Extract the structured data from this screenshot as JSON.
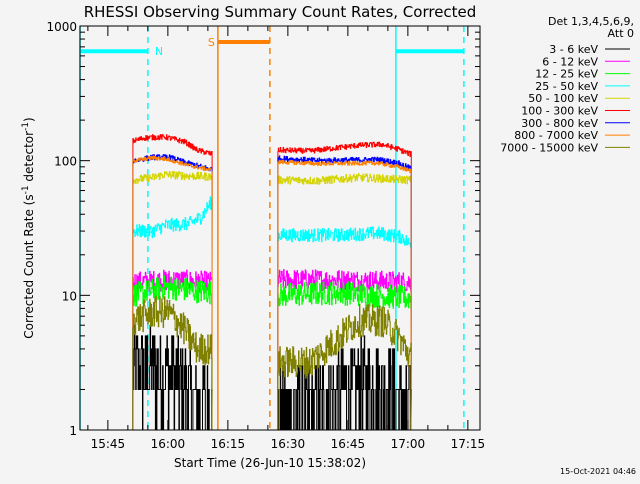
{
  "chart_data": {
    "type": "line",
    "title": "RHESSI Observing Summary Count Rates, Corrected",
    "xlabel": "Start Time (26-Jun-10 15:38:02)",
    "ylabel": "Corrected Count Rate (s",
    "ylabel_sup1": "-1",
    "ylabel_mid": " detector",
    "ylabel_sup2": "-1",
    "ylabel_end": ")",
    "yscale": "log",
    "ylim": [
      1,
      1000
    ],
    "ytick_labels": [
      "1000",
      "100",
      "10",
      "1"
    ],
    "xlim": [
      "15:38:02",
      "17:18:02"
    ],
    "xtick_labels": [
      "15:45",
      "16:00",
      "16:15",
      "16:30",
      "16:45",
      "17:00",
      "17:15"
    ],
    "legend_header": [
      "Det 1,3,4,5,6,9,",
      "Att 0"
    ],
    "legend_position": "right",
    "timestamp": "15-Oct-2021 04:46",
    "windows": [
      [
        "15:51:15",
        "16:11:00"
      ],
      [
        "16:27:30",
        "17:00:45"
      ]
    ],
    "series": [
      {
        "name": "3 - 6 keV",
        "color": "#000000",
        "noise": 0.35,
        "w1": [
          [
            0,
            2.8
          ],
          [
            5,
            2.8
          ],
          [
            10,
            2.5
          ],
          [
            15,
            1.8
          ],
          [
            19.7,
            1.4
          ]
        ],
        "w2": [
          [
            0,
            1.3
          ],
          [
            10,
            1.5
          ],
          [
            18,
            2.0
          ],
          [
            25,
            2.2
          ],
          [
            33,
            1.4
          ]
        ]
      },
      {
        "name": "6 - 12 keV",
        "color": "#ff00ff",
        "noise": 0.08,
        "w1": [
          [
            0,
            12.5
          ],
          [
            10,
            13
          ],
          [
            19.7,
            12.5
          ]
        ],
        "w2": [
          [
            0,
            13
          ],
          [
            15,
            13
          ],
          [
            33,
            12.5
          ]
        ]
      },
      {
        "name": "12 - 25 keV",
        "color": "#00ff00",
        "noise": 0.09,
        "w1": [
          [
            0,
            10
          ],
          [
            8,
            11.5
          ],
          [
            19.7,
            10.5
          ]
        ],
        "w2": [
          [
            0,
            10
          ],
          [
            15,
            10.5
          ],
          [
            33,
            9.5
          ]
        ]
      },
      {
        "name": "25 - 50 keV",
        "color": "#00ffff",
        "noise": 0.05,
        "w1": [
          [
            0,
            30
          ],
          [
            5,
            30
          ],
          [
            8,
            33
          ],
          [
            14,
            34
          ],
          [
            17,
            38
          ],
          [
            19.7,
            50
          ]
        ],
        "w2": [
          [
            0,
            28
          ],
          [
            15,
            28
          ],
          [
            25,
            29
          ],
          [
            31,
            27
          ],
          [
            33,
            24
          ]
        ]
      },
      {
        "name": "50 - 100 keV",
        "color": "#d4d400",
        "noise": 0.03,
        "w1": [
          [
            0,
            72
          ],
          [
            5,
            75
          ],
          [
            8,
            79
          ],
          [
            14,
            77
          ],
          [
            19.7,
            76
          ]
        ],
        "w2": [
          [
            0,
            72
          ],
          [
            10,
            71
          ],
          [
            20,
            75
          ],
          [
            33,
            72
          ]
        ]
      },
      {
        "name": "100 - 300 keV",
        "color": "#ff0000",
        "noise": 0.02,
        "w1": [
          [
            0,
            140
          ],
          [
            3,
            148
          ],
          [
            8,
            150
          ],
          [
            13,
            138
          ],
          [
            16,
            120
          ],
          [
            19.7,
            112
          ]
        ],
        "w2": [
          [
            0,
            120
          ],
          [
            8,
            118
          ],
          [
            20,
            130
          ],
          [
            26,
            132
          ],
          [
            30,
            122
          ],
          [
            33,
            112
          ]
        ]
      },
      {
        "name": "300 - 800 keV",
        "color": "#0000ff",
        "noise": 0.02,
        "w1": [
          [
            0,
            100
          ],
          [
            5,
            106
          ],
          [
            9,
            106
          ],
          [
            14,
            95
          ],
          [
            19.7,
            86
          ]
        ],
        "w2": [
          [
            0,
            104
          ],
          [
            10,
            100
          ],
          [
            25,
            102
          ],
          [
            30,
            96
          ],
          [
            33,
            88
          ]
        ]
      },
      {
        "name": "800 - 7000 keV",
        "color": "#ff8000",
        "noise": 0.015,
        "w1": [
          [
            0,
            100
          ],
          [
            5,
            105
          ],
          [
            9,
            102
          ],
          [
            14,
            92
          ],
          [
            19.7,
            85
          ]
        ],
        "w2": [
          [
            0,
            98
          ],
          [
            10,
            95
          ],
          [
            25,
            96
          ],
          [
            30,
            90
          ],
          [
            33,
            84
          ]
        ]
      },
      {
        "name": "7000 - 15000 keV",
        "color": "#808000",
        "noise": 0.12,
        "w1": [
          [
            0,
            6.5
          ],
          [
            5,
            7.5
          ],
          [
            9,
            7.5
          ],
          [
            13,
            5.5
          ],
          [
            16,
            4
          ],
          [
            19.7,
            4
          ]
        ],
        "w2": [
          [
            0,
            3.2
          ],
          [
            8,
            3.2
          ],
          [
            14,
            4.5
          ],
          [
            20,
            6.5
          ],
          [
            26,
            6.5
          ],
          [
            30,
            5
          ],
          [
            33,
            3.5
          ]
        ]
      }
    ],
    "annotations": [
      {
        "label": "N",
        "color": "#00ffff",
        "bar_value": 650,
        "segments": [
          [
            "15:38:02",
            "15:55:00"
          ],
          [
            "16:57:00",
            "17:14:00"
          ]
        ],
        "solid_lines": [
          "15:38:02",
          "16:57:00"
        ],
        "dashed_lines": [
          "15:55:00",
          "17:14:00"
        ]
      },
      {
        "label": "S",
        "color": "#ff8000",
        "bar_value": 760,
        "segments": [
          [
            "16:12:30",
            "16:25:30"
          ]
        ],
        "solid_lines": [
          "16:12:30"
        ],
        "dashed_lines": [
          "16:25:30"
        ]
      }
    ]
  }
}
